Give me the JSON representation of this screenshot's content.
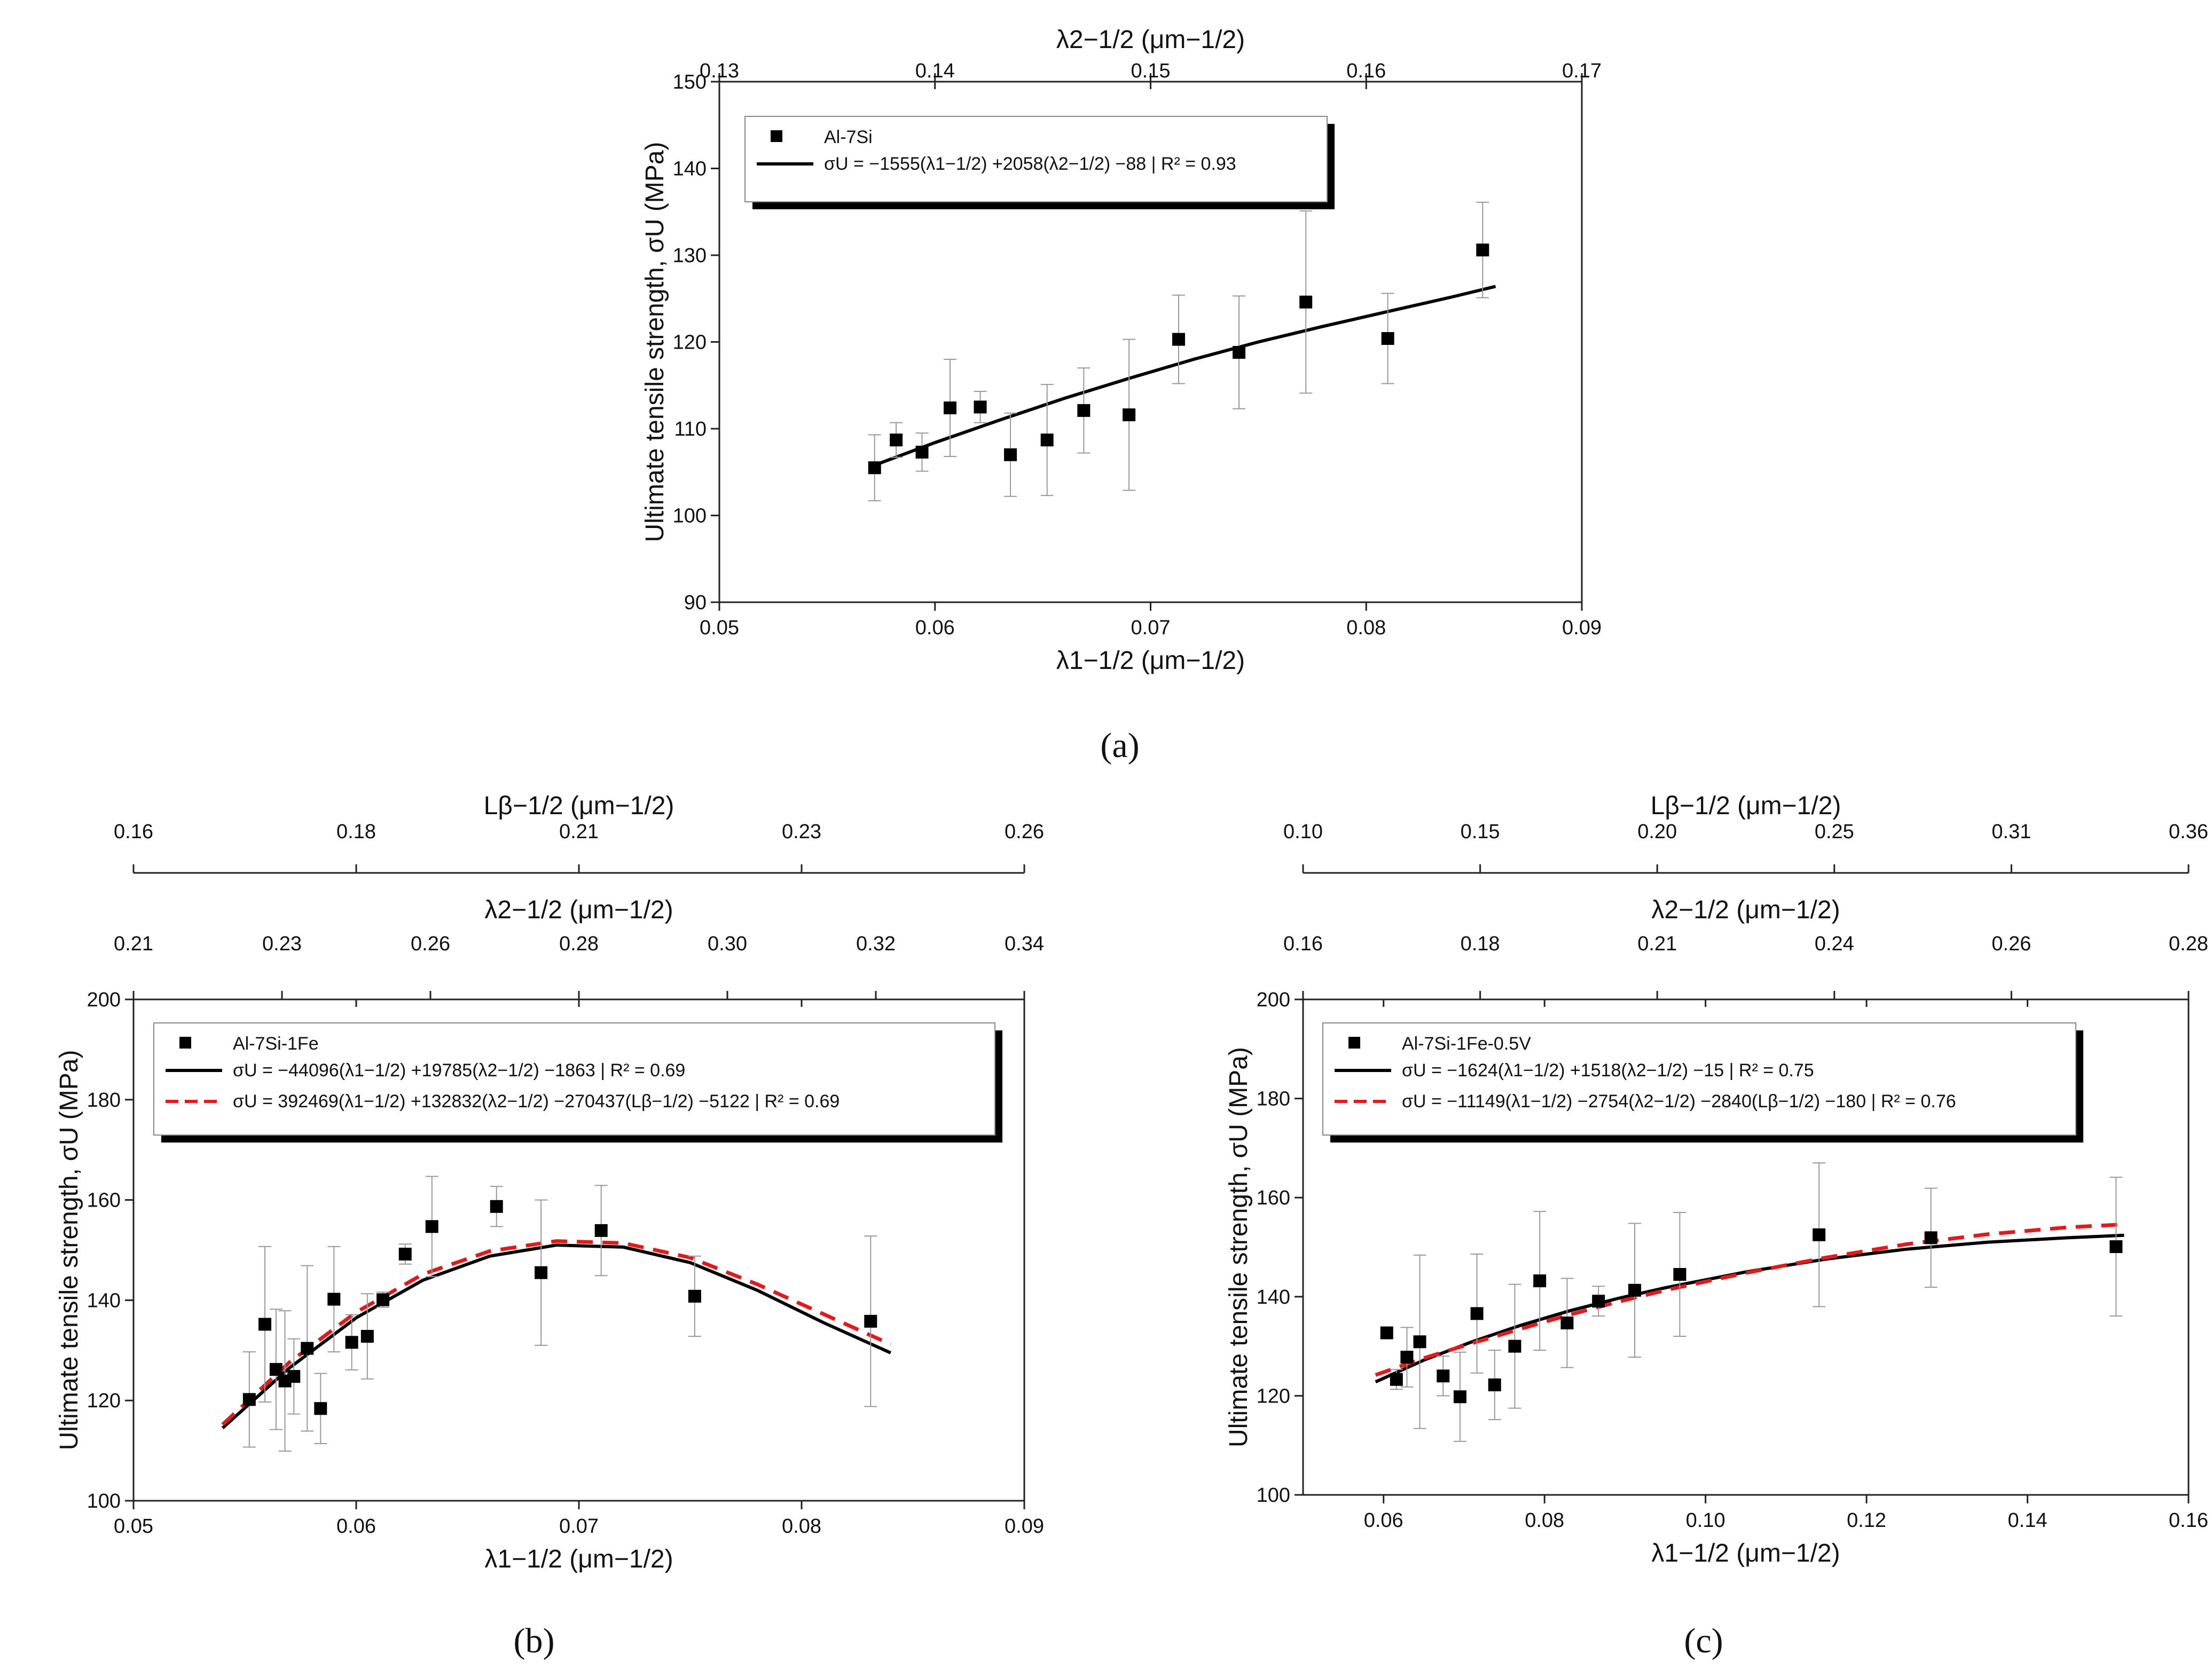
{
  "figure": {
    "captions": [
      "(a)",
      "(b)",
      "(c)"
    ]
  },
  "chart_data": [
    {
      "id": "a",
      "caption": "(a)",
      "type": "scatter",
      "xlabel": "λ1−1/2 (μm−1/2)",
      "ylabel": "Ultimate tensile strength, σU (MPa)",
      "xlim": [
        0.05,
        0.09
      ],
      "ylim": [
        90,
        150
      ],
      "x_ticks": [
        "0.05",
        "0.06",
        "0.07",
        "0.08",
        "0.09"
      ],
      "y_ticks": [
        "90",
        "100",
        "110",
        "120",
        "130",
        "140",
        "150"
      ],
      "top_axes": [
        {
          "label": "λ2−1/2 (μm−1/2)",
          "ticks": [
            "0.13",
            "0.14",
            "0.15",
            "0.16",
            "0.17"
          ]
        }
      ],
      "legend": {
        "title": "Al-7Si",
        "entries": [
          {
            "style": "solid",
            "color": "#000000",
            "text": "σU = −1555(λ1−1/2) +2058(λ2−1/2) −88 | R² = 0.93"
          }
        ]
      },
      "points": [
        {
          "x": 0.0572,
          "y": 105.5,
          "err": 3.8
        },
        {
          "x": 0.0582,
          "y": 108.7,
          "err": 2.0
        },
        {
          "x": 0.0594,
          "y": 107.3,
          "err": 2.2
        },
        {
          "x": 0.0607,
          "y": 112.4,
          "err": 5.6
        },
        {
          "x": 0.0621,
          "y": 112.5,
          "err": 1.8
        },
        {
          "x": 0.0635,
          "y": 107.0,
          "err": 4.8
        },
        {
          "x": 0.0652,
          "y": 108.7,
          "err": 6.4
        },
        {
          "x": 0.0669,
          "y": 112.1,
          "err": 4.9
        },
        {
          "x": 0.069,
          "y": 111.6,
          "err": 8.7
        },
        {
          "x": 0.0713,
          "y": 120.3,
          "err": 5.1
        },
        {
          "x": 0.0741,
          "y": 118.8,
          "err": 6.5
        },
        {
          "x": 0.0772,
          "y": 124.6,
          "err": 10.5
        },
        {
          "x": 0.081,
          "y": 120.4,
          "err": 5.2
        },
        {
          "x": 0.0854,
          "y": 130.6,
          "err": 5.5
        }
      ],
      "series": [
        {
          "name": "fit",
          "style": "solid",
          "color": "#000000",
          "x": [
            0.0572,
            0.06,
            0.063,
            0.066,
            0.069,
            0.072,
            0.075,
            0.078,
            0.081,
            0.084,
            0.086
          ],
          "y": [
            105.8,
            108.4,
            111.0,
            113.5,
            115.8,
            118.0,
            120.0,
            121.8,
            123.5,
            125.2,
            126.4
          ]
        }
      ]
    },
    {
      "id": "b",
      "caption": "(b)",
      "type": "scatter",
      "xlabel": "λ1−1/2 (μm−1/2)",
      "ylabel": "Ultimate tensile strength, σU (MPa)",
      "xlim": [
        0.05,
        0.09
      ],
      "ylim": [
        100,
        200
      ],
      "x_ticks": [
        "0.05",
        "0.06",
        "0.07",
        "0.08",
        "0.09"
      ],
      "y_ticks": [
        "100",
        "120",
        "140",
        "160",
        "180",
        "200"
      ],
      "top_axes": [
        {
          "label": "λ2−1/2 (μm−1/2)",
          "ticks": [
            "0.21",
            "0.23",
            "0.26",
            "0.28",
            "0.30",
            "0.32",
            "0.34"
          ]
        },
        {
          "label": "Lβ−1/2 (μm−1/2)",
          "ticks": [
            "0.16",
            "0.18",
            "0.21",
            "0.23",
            "0.26"
          ]
        }
      ],
      "legend": {
        "title": "Al-7Si-1Fe",
        "entries": [
          {
            "style": "solid",
            "color": "#000000",
            "text": "σU = −44096(λ1−1/2) +19785(λ2−1/2) −1863 | R² = 0.69"
          },
          {
            "style": "dashed",
            "color": "#e31a1c",
            "text": "σU = 392469(λ1−1/2) +132832(λ2−1/2) −270437(Lβ−1/2) −5122 | R² = 0.69"
          }
        ]
      },
      "points": [
        {
          "x": 0.0552,
          "y": 120.2,
          "err": 9.5
        },
        {
          "x": 0.0559,
          "y": 135.2,
          "err": 15.5
        },
        {
          "x": 0.0564,
          "y": 126.2,
          "err": 12.0
        },
        {
          "x": 0.0568,
          "y": 123.9,
          "err": 14.0
        },
        {
          "x": 0.0572,
          "y": 124.8,
          "err": 7.5
        },
        {
          "x": 0.0578,
          "y": 130.4,
          "err": 16.5
        },
        {
          "x": 0.0584,
          "y": 118.4,
          "err": 7.0
        },
        {
          "x": 0.059,
          "y": 140.2,
          "err": 10.5
        },
        {
          "x": 0.0598,
          "y": 131.6,
          "err": 5.5
        },
        {
          "x": 0.0605,
          "y": 132.8,
          "err": 8.5
        },
        {
          "x": 0.0612,
          "y": 140.1,
          "err": 1.5
        },
        {
          "x": 0.0622,
          "y": 149.2,
          "err": 2.0
        },
        {
          "x": 0.0634,
          "y": 154.7,
          "err": 10.0
        },
        {
          "x": 0.0663,
          "y": 158.7,
          "err": 4.0
        },
        {
          "x": 0.0683,
          "y": 145.5,
          "err": 14.5
        },
        {
          "x": 0.071,
          "y": 153.9,
          "err": 9.0
        },
        {
          "x": 0.0752,
          "y": 140.8,
          "err": 8.0
        },
        {
          "x": 0.0831,
          "y": 135.8,
          "err": 17.0
        }
      ],
      "series": [
        {
          "name": "fit",
          "style": "solid",
          "color": "#000000",
          "x": [
            0.054,
            0.057,
            0.06,
            0.063,
            0.066,
            0.069,
            0.072,
            0.075,
            0.078,
            0.081,
            0.084
          ],
          "y": [
            114.5,
            126.5,
            136.5,
            144.0,
            148.8,
            151.0,
            150.6,
            147.5,
            142.0,
            135.5,
            129.5
          ]
        },
        {
          "name": "fit-beta",
          "style": "dashed",
          "color": "#e31a1c",
          "x": [
            0.054,
            0.057,
            0.06,
            0.063,
            0.066,
            0.069,
            0.072,
            0.075,
            0.078,
            0.081,
            0.084
          ],
          "y": [
            115.2,
            127.6,
            137.6,
            145.2,
            149.8,
            151.8,
            151.4,
            148.5,
            143.2,
            137.2,
            131.2
          ]
        }
      ]
    },
    {
      "id": "c",
      "caption": "(c)",
      "type": "scatter",
      "xlabel": "λ1−1/2 (μm−1/2)",
      "ylabel": "Ultimate tensile strength, σU (MPa)",
      "xlim": [
        0.05,
        0.16
      ],
      "ylim": [
        100,
        200
      ],
      "x_ticks": [
        "0.06",
        "0.08",
        "0.10",
        "0.12",
        "0.14",
        "0.16"
      ],
      "y_ticks": [
        "100",
        "120",
        "140",
        "160",
        "180",
        "200"
      ],
      "top_axes": [
        {
          "label": "λ2−1/2 (μm−1/2)",
          "ticks": [
            "0.16",
            "0.18",
            "0.21",
            "0.24",
            "0.26",
            "0.28"
          ]
        },
        {
          "label": "Lβ−1/2 (μm−1/2)",
          "ticks": [
            "0.10",
            "0.15",
            "0.20",
            "0.25",
            "0.31",
            "0.36"
          ]
        }
      ],
      "legend": {
        "title": "Al-7Si-1Fe-0.5V",
        "entries": [
          {
            "style": "solid",
            "color": "#000000",
            "text": "σU = −1624(λ1−1/2) +1518(λ2−1/2) −15 | R² = 0.75"
          },
          {
            "style": "dashed",
            "color": "#e31a1c",
            "text": "σU = −11149(λ1−1/2) −2754(λ2−1/2) −2840(Lβ−1/2) −180 | R² = 0.76"
          }
        ]
      },
      "points": [
        {
          "x": 0.0604,
          "y": 132.7,
          "err": 0
        },
        {
          "x": 0.0616,
          "y": 123.3,
          "err": 2.0
        },
        {
          "x": 0.0629,
          "y": 127.8,
          "err": 6.0
        },
        {
          "x": 0.0645,
          "y": 130.9,
          "err": 17.5
        },
        {
          "x": 0.0674,
          "y": 124.0,
          "err": 4.0
        },
        {
          "x": 0.0695,
          "y": 119.8,
          "err": 9.0
        },
        {
          "x": 0.0716,
          "y": 136.6,
          "err": 12.0
        },
        {
          "x": 0.0738,
          "y": 122.2,
          "err": 7.0
        },
        {
          "x": 0.0763,
          "y": 130.0,
          "err": 12.5
        },
        {
          "x": 0.0794,
          "y": 143.2,
          "err": 14.0
        },
        {
          "x": 0.0828,
          "y": 134.7,
          "err": 9.0
        },
        {
          "x": 0.0867,
          "y": 139.1,
          "err": 3.0
        },
        {
          "x": 0.0912,
          "y": 141.3,
          "err": 13.5
        },
        {
          "x": 0.0968,
          "y": 144.5,
          "err": 12.5
        },
        {
          "x": 0.1141,
          "y": 152.5,
          "err": 14.5
        },
        {
          "x": 0.128,
          "y": 151.9,
          "err": 10.0
        },
        {
          "x": 0.151,
          "y": 150.1,
          "err": 14.0
        }
      ],
      "series": [
        {
          "name": "fit",
          "style": "solid",
          "color": "#000000",
          "x": [
            0.059,
            0.065,
            0.071,
            0.077,
            0.083,
            0.089,
            0.095,
            0.105,
            0.115,
            0.125,
            0.135,
            0.145,
            0.152
          ],
          "y": [
            122.8,
            127.2,
            130.9,
            134.2,
            137.1,
            139.6,
            141.8,
            145.0,
            147.6,
            149.6,
            151.0,
            151.9,
            152.4
          ]
        },
        {
          "name": "fit-beta",
          "style": "dashed",
          "color": "#e31a1c",
          "x": [
            0.059,
            0.065,
            0.071,
            0.077,
            0.083,
            0.089,
            0.095,
            0.105,
            0.115,
            0.125,
            0.135,
            0.145,
            0.152
          ],
          "y": [
            124.2,
            127.6,
            130.6,
            133.5,
            136.3,
            138.9,
            141.3,
            144.8,
            147.9,
            150.6,
            152.6,
            154.0,
            154.6
          ]
        }
      ]
    }
  ]
}
